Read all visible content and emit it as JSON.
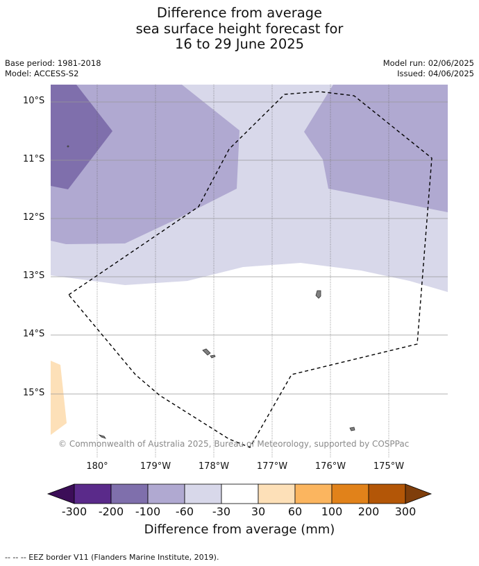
{
  "title_lines": [
    "Difference from average",
    "sea surface height forecast for",
    "16 to 29 June 2025"
  ],
  "meta_left": [
    "Base period: 1981-2018",
    "Model: ACCESS-S2"
  ],
  "meta_right": [
    "Model run: 02/06/2025",
    "Issued: 04/06/2025"
  ],
  "latitudes": [
    "10°S",
    "11°S",
    "12°S",
    "13°S",
    "14°S",
    "15°S"
  ],
  "longitudes": [
    "180°",
    "179°W",
    "178°W",
    "177°W",
    "176°W",
    "175°W"
  ],
  "copyright": "© Commonwealth of Australia 2025, Bureau of Meteorology, supported by COSPPac",
  "colorbar": {
    "title": "Difference from average (mm)",
    "ticks": [
      "-300",
      "-200",
      "-100",
      "-60",
      "-30",
      "30",
      "60",
      "100",
      "200",
      "300"
    ],
    "colors": [
      "#5a2a8a",
      "#7f6fac",
      "#b0a9d1",
      "#d8d8ea",
      "#ffffff",
      "#fde0b8",
      "#fbb55f",
      "#e1821a",
      "#b35607"
    ],
    "under_color": "#3c0e58",
    "over_color": "#7f3e0b"
  },
  "footnote": "--  --  -- EEZ border V11 (Flanders Marine Institute, 2019)."
}
